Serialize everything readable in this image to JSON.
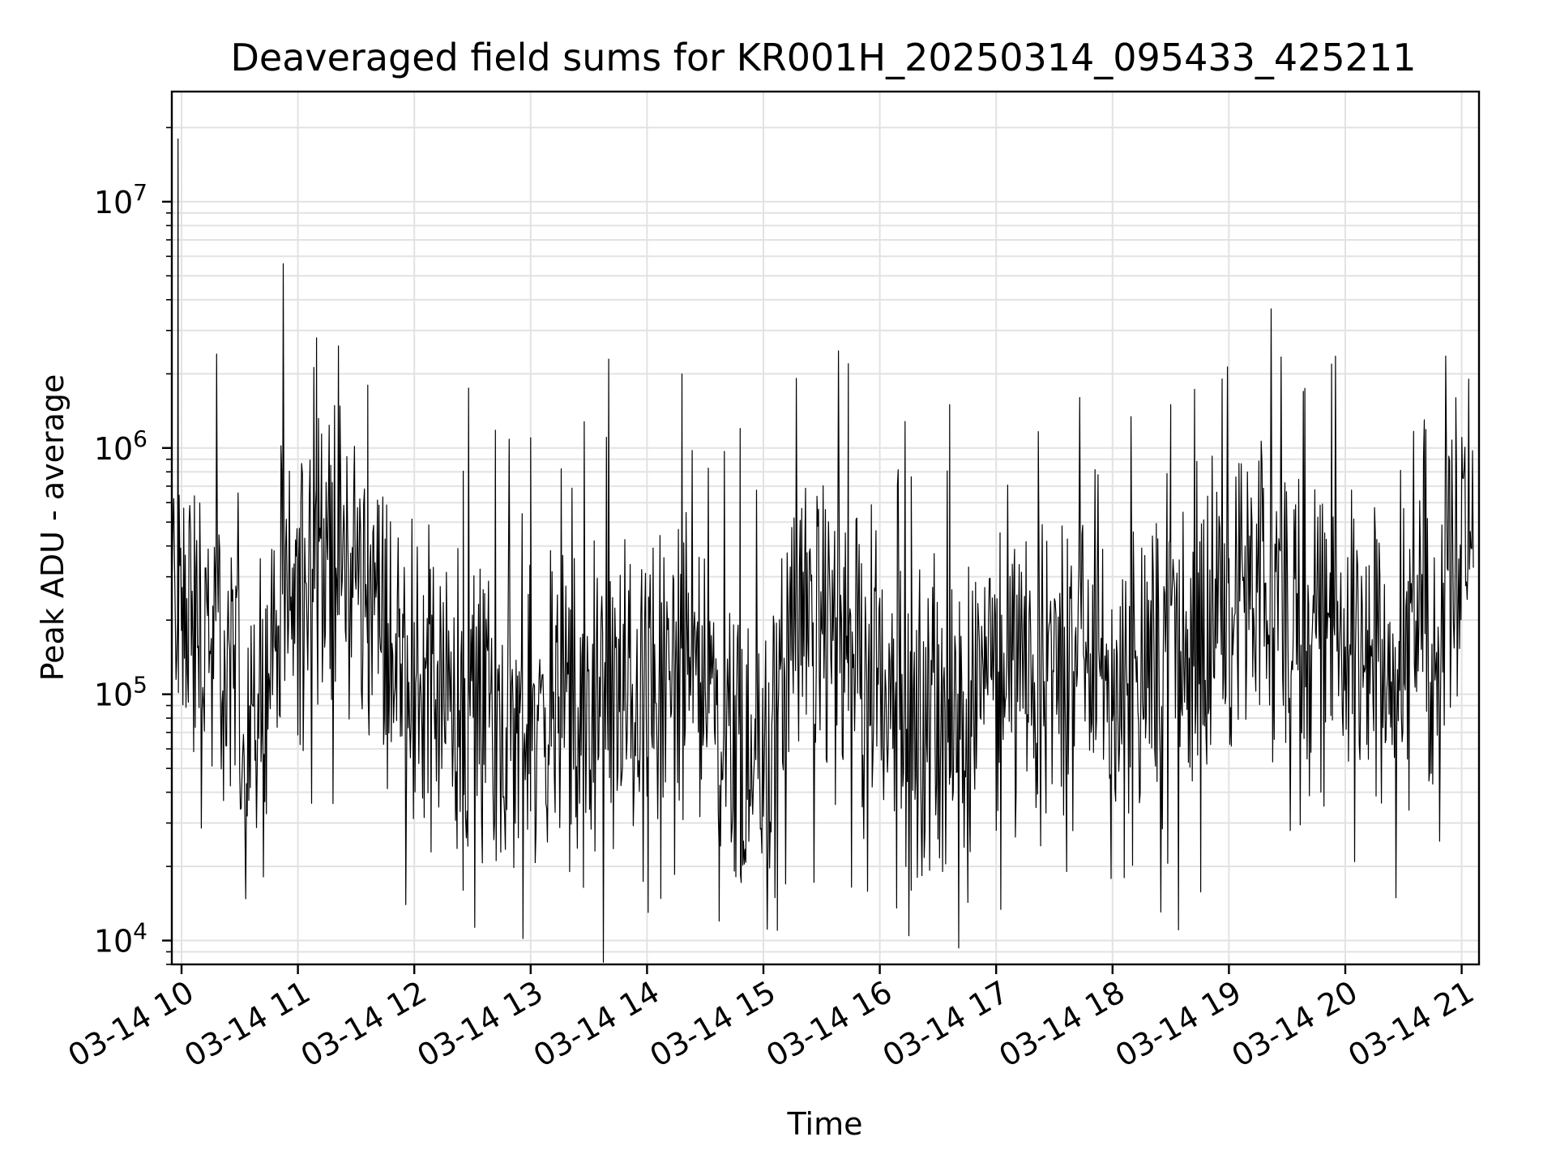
{
  "chart_data": {
    "type": "line",
    "title": "Deaveraged field sums for KR001H_20250314_095433_425211",
    "xlabel": "Time",
    "ylabel": "Peak ADU - average",
    "yscale": "log",
    "ylim": [
      8000,
      28000000
    ],
    "xlim": [
      "2025-03-14 09:54",
      "2025-03-14 21:07"
    ],
    "grid": true,
    "line_color": "#000000",
    "x_tick_labels": [
      "03-14 10",
      "03-14 11",
      "03-14 12",
      "03-14 13",
      "03-14 14",
      "03-14 15",
      "03-14 16",
      "03-14 17",
      "03-14 18",
      "03-14 19",
      "03-14 20",
      "03-14 21"
    ],
    "x_tick_hours": [
      10,
      11,
      12,
      13,
      14,
      15,
      16,
      17,
      18,
      19,
      20,
      21
    ],
    "y_ticks": [
      {
        "base": "10",
        "exp": "4",
        "value": 10000
      },
      {
        "base": "10",
        "exp": "5",
        "value": 100000
      },
      {
        "base": "10",
        "exp": "6",
        "value": 1000000
      },
      {
        "base": "10",
        "exp": "7",
        "value": 10000000
      }
    ],
    "series": [
      {
        "x_hours": [
          9.9,
          9.98,
          10.1,
          10.25,
          10.4,
          10.55,
          10.7,
          10.85,
          11.0,
          11.15,
          11.3,
          11.45,
          11.6,
          11.75,
          11.9,
          12.05,
          12.2,
          12.35,
          12.5,
          12.65,
          12.8,
          12.95,
          13.1,
          13.25,
          13.4,
          13.55,
          13.7,
          13.85,
          14.0,
          14.15,
          14.3,
          14.45,
          14.6,
          14.75,
          14.9,
          15.05,
          15.2,
          15.35,
          15.5,
          15.65,
          15.8,
          15.95,
          16.1,
          16.25,
          16.4,
          16.55,
          16.7,
          16.85,
          17.0,
          17.15,
          17.3,
          17.45,
          17.6,
          17.75,
          17.9,
          18.05,
          18.2,
          18.35,
          18.5,
          18.65,
          18.8,
          18.95,
          19.1,
          19.25,
          19.4,
          19.55,
          19.7,
          19.85,
          20.0,
          20.15,
          20.3,
          20.45,
          20.6,
          20.75,
          20.9,
          21.05
        ],
        "values": [
          300000,
          250000,
          200000,
          150000,
          120000,
          100000,
          110000,
          180000,
          250000,
          400000,
          350000,
          300000,
          260000,
          180000,
          120000,
          110000,
          100000,
          95000,
          90000,
          85000,
          80000,
          75000,
          80000,
          78000,
          70000,
          65000,
          90000,
          100000,
          110000,
          120000,
          130000,
          140000,
          90000,
          70000,
          65000,
          60000,
          150000,
          250000,
          200000,
          170000,
          150000,
          130000,
          110000,
          85000,
          75000,
          70000,
          65000,
          160000,
          120000,
          115000,
          110000,
          120000,
          130000,
          125000,
          120000,
          120000,
          140000,
          150000,
          160000,
          170000,
          180000,
          200000,
          220000,
          230000,
          220000,
          210000,
          200000,
          190000,
          180000,
          170000,
          160000,
          155000,
          150000,
          150000,
          400000,
          500000
        ]
      }
    ],
    "spikes": [
      {
        "x_hour": 9.97,
        "value": 18000000
      },
      {
        "x_hour": 11.16,
        "value": 2800000
      },
      {
        "x_hour": 11.6,
        "value": 1800000
      },
      {
        "x_hour": 14.3,
        "value": 2000000
      },
      {
        "x_hour": 15.73,
        "value": 2200000
      },
      {
        "x_hour": 18.5,
        "value": 1500000
      },
      {
        "x_hour": 20.95,
        "value": 1600000
      },
      {
        "x_hour": 13.0,
        "value": 1100000
      },
      {
        "x_hour": 16.6,
        "value": 1500000
      },
      {
        "x_hour": 14.8,
        "value": 1200000
      }
    ],
    "dips": [
      {
        "x_hour": 15.12,
        "value": 11000
      },
      {
        "x_hour": 14.62,
        "value": 12000
      },
      {
        "x_hour": 14.01,
        "value": 13000
      },
      {
        "x_hour": 12.42,
        "value": 16000
      },
      {
        "x_hour": 16.27,
        "value": 16000
      },
      {
        "x_hour": 18.1,
        "value": 18000
      }
    ]
  }
}
